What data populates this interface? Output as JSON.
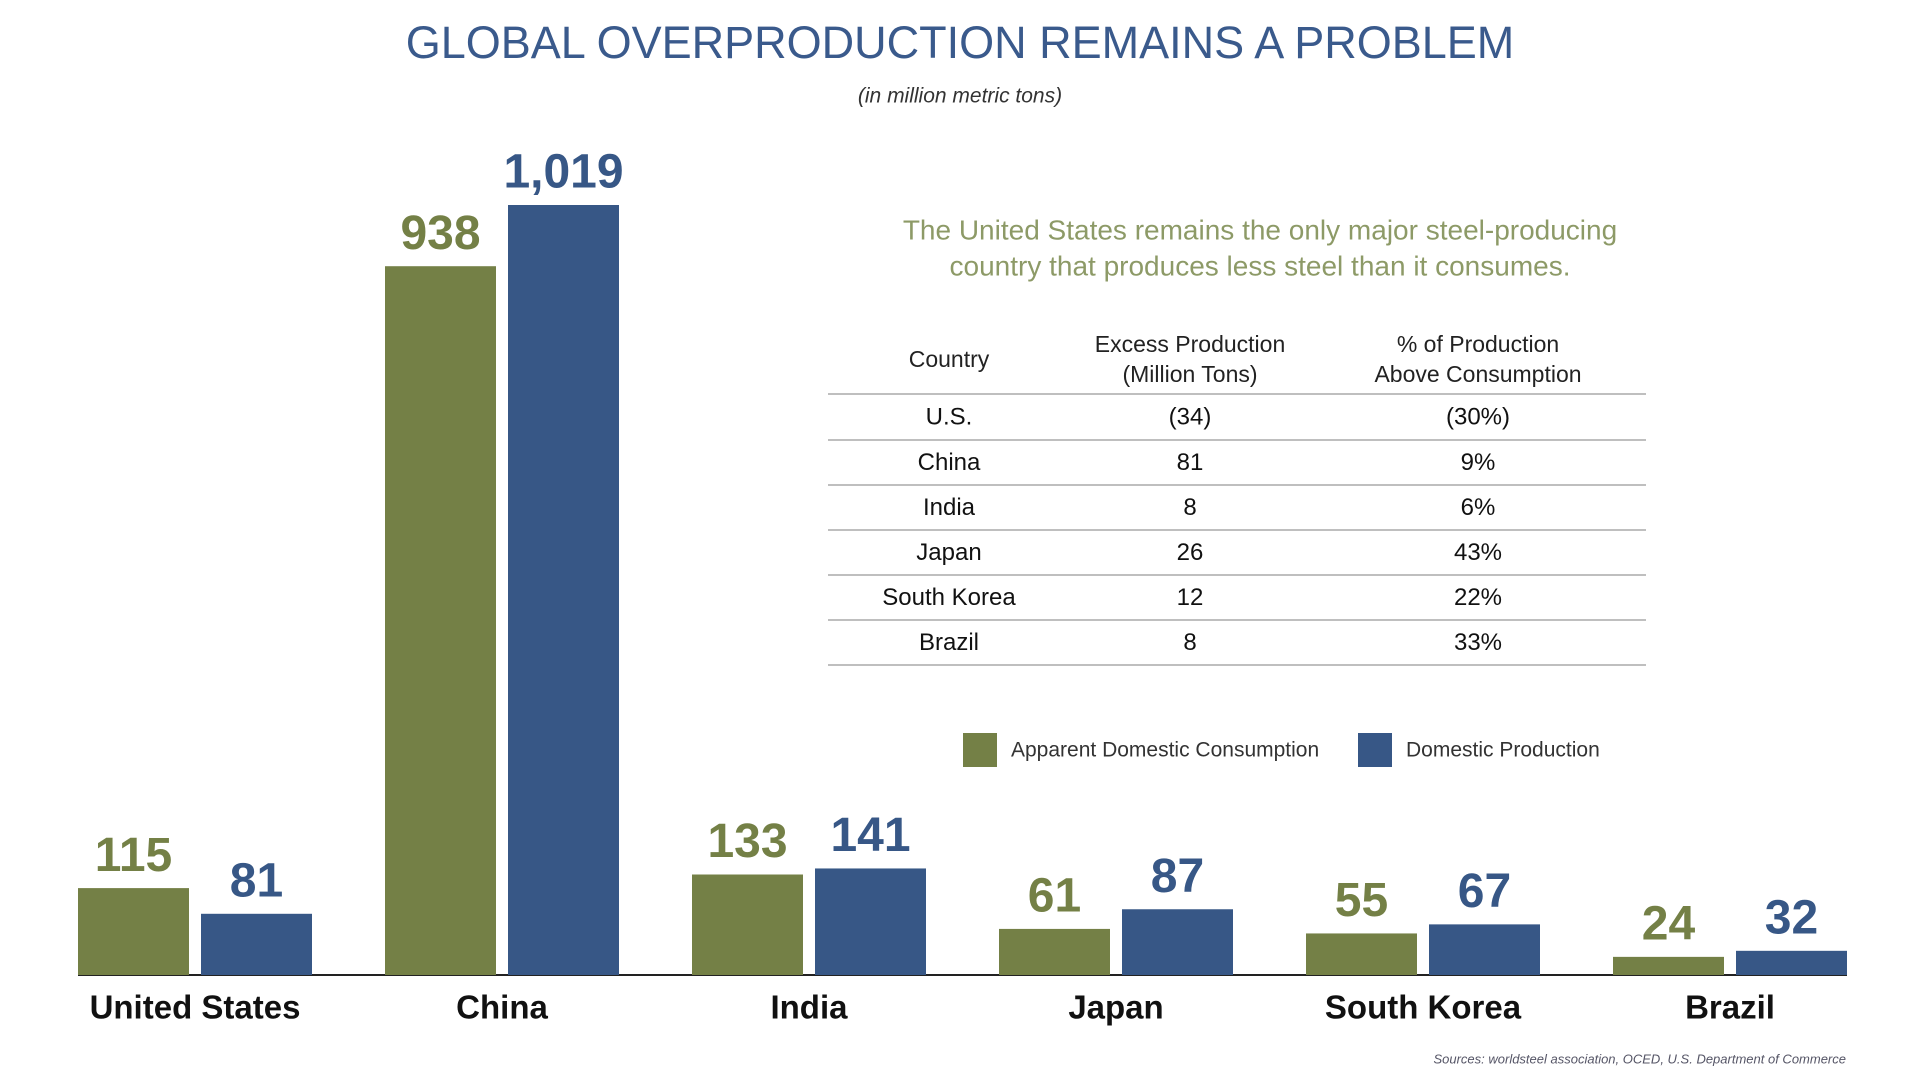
{
  "chart_data": {
    "type": "bar",
    "title": "GLOBAL OVERPRODUCTION REMAINS A PROBLEM",
    "subtitle": "(in million metric tons)",
    "annotation": [
      "The United States remains the only major steel-producing",
      "country that produces less steel than it consumes."
    ],
    "categories": [
      "United States",
      "China",
      "India",
      "Japan",
      "South Korea",
      "Brazil"
    ],
    "series": [
      {
        "name": "Apparent Domestic Consumption",
        "color": "#748046",
        "values": [
          115,
          938,
          133,
          61,
          55,
          24
        ]
      },
      {
        "name": "Domestic Production",
        "color": "#375786",
        "values": [
          81,
          1019,
          141,
          87,
          67,
          32
        ],
        "value_labels": [
          "81",
          "1,019",
          "141",
          "87",
          "67",
          "32"
        ]
      }
    ],
    "table": {
      "headers": [
        [
          "Country"
        ],
        [
          "Excess Production",
          "(Million Tons)"
        ],
        [
          "% of Production",
          "Above Consumption"
        ]
      ],
      "rows": [
        [
          "U.S.",
          "(34)",
          "(30%)"
        ],
        [
          "China",
          "81",
          "9%"
        ],
        [
          "India",
          "8",
          "6%"
        ],
        [
          "Japan",
          "26",
          "43%"
        ],
        [
          "South Korea",
          "12",
          "22%"
        ],
        [
          "Brazil",
          "8",
          "33%"
        ]
      ]
    },
    "source": "Sources: worldsteel association, OCED, U.S. Department of Commerce"
  }
}
